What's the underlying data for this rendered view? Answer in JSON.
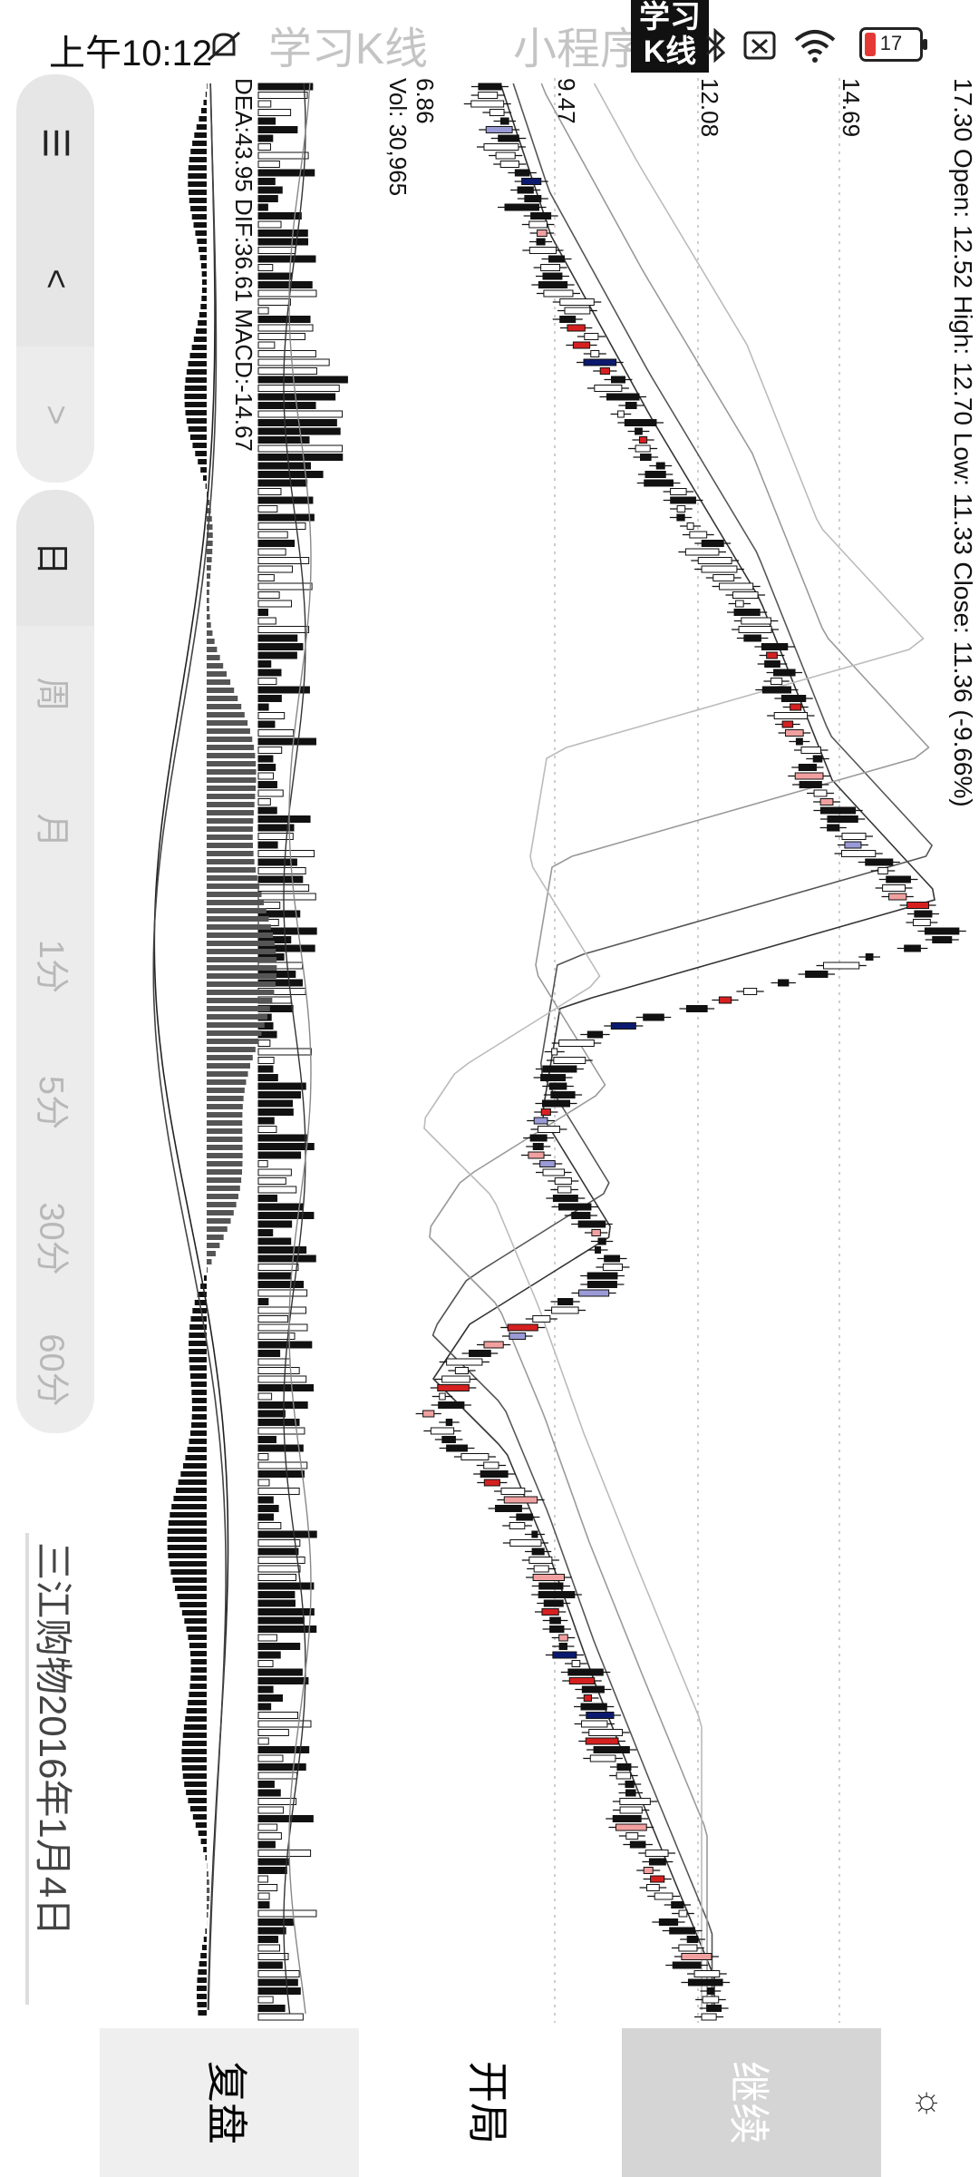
{
  "status_bar": {
    "time": "上午10:12",
    "watermark_left": "学习K线",
    "watermark_right": "小程序",
    "logo_top": "学习",
    "logo_bottom": "K线",
    "battery_level": "17",
    "icons": [
      "mute-icon",
      "bluetooth-icon",
      "sim-off-icon",
      "wifi-icon",
      "battery-icon"
    ]
  },
  "toolbar": {
    "items": [
      {
        "label": "☰",
        "icon": "menu-icon"
      },
      {
        "label": "<",
        "icon": "chevron-up-icon"
      },
      {
        "label": ">",
        "icon": "chevron-down-icon"
      },
      {
        "label": "日"
      },
      {
        "label": "周"
      },
      {
        "label": "月"
      },
      {
        "label": "1分"
      },
      {
        "label": "5分"
      },
      {
        "label": "30分"
      },
      {
        "label": "60分"
      }
    ]
  },
  "price_info": {
    "text": "17.30 Open: 12.52 High: 12.70 Low: 11.33 Close: 11.36 (-9.66%)"
  },
  "price_axis": {
    "ticks": [
      "14.69",
      "12.08",
      "9.47"
    ]
  },
  "volume_info": {
    "low": "6.86",
    "vol": "Vol: 30,965"
  },
  "macd_info": {
    "text": "DEA:43.95 DIF:36.61 MACD:-14.67"
  },
  "stock_title": "三江购物2016年1月4日",
  "bottom_buttons": {
    "review": "复盘",
    "open": "开局",
    "continue": "继续",
    "settings_icon": "☼"
  },
  "colors": {
    "up_red": "#d62020",
    "up_pink": "#f1a0a0",
    "down_navy": "#0b1a6e",
    "down_lav": "#9a9ad6",
    "grid": "#bdbdbd",
    "bar_black": "#111111",
    "continue_bg": "#d5d5d5",
    "review_bg": "#efefef"
  }
}
